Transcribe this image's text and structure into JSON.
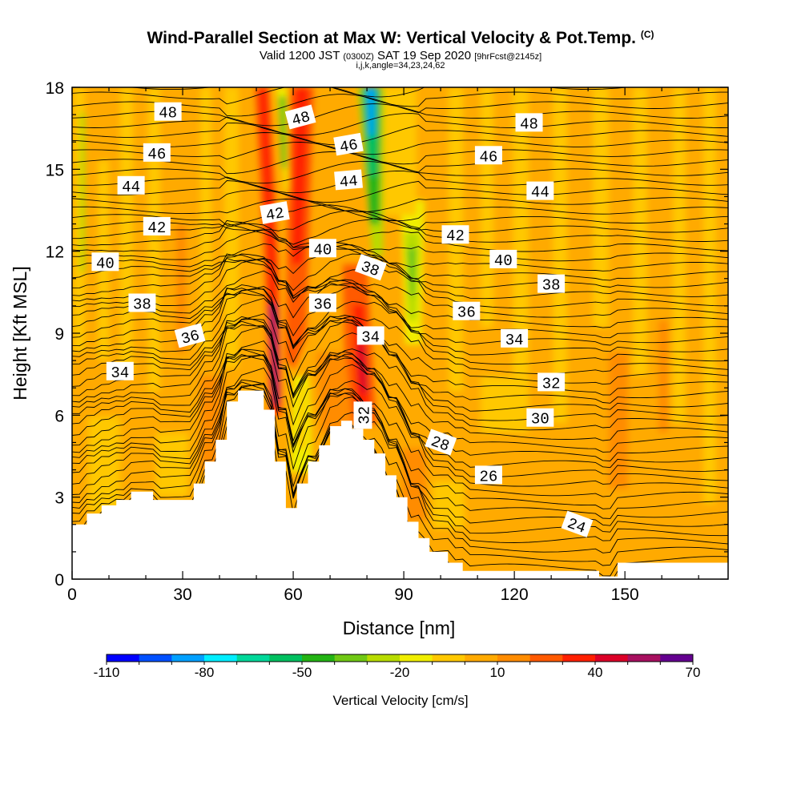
{
  "header": {
    "title": "Wind-Parallel Section at Max W: Vertical Velocity & Pot.Temp.",
    "copyright": "(C)",
    "valid_prefix": "Valid 1200 JST",
    "valid_utc": "(0300Z)",
    "valid_date": "SAT 19 Sep 2020",
    "forecast": "[9hrFcst@2145z]",
    "indices": "i,j,k,angle=34,23,24,62"
  },
  "chart_data": {
    "type": "heatmap",
    "xlabel": "Distance [nm]",
    "ylabel": "Height [Kft MSL]",
    "xlim": [
      0,
      178
    ],
    "ylim": [
      0,
      18
    ],
    "xticks": [
      0,
      30,
      60,
      90,
      120,
      150
    ],
    "yticks": [
      0,
      3,
      6,
      9,
      12,
      15,
      18
    ],
    "colorbar": {
      "label": "Vertical Velocity [cm/s]",
      "tick_labels": [
        "-110",
        "-80",
        "-50",
        "-20",
        "10",
        "40",
        "70"
      ],
      "tick_values": [
        -110,
        -80,
        -50,
        -20,
        10,
        40,
        70
      ],
      "colors": [
        "#0000ff",
        "#0050ff",
        "#00a0ff",
        "#00eeff",
        "#00d89a",
        "#00c060",
        "#24b414",
        "#70c814",
        "#b8dc00",
        "#f0ee00",
        "#ffc800",
        "#ffaa00",
        "#ff8c00",
        "#ff5a00",
        "#ff2000",
        "#dc0028",
        "#a81060",
        "#640090"
      ]
    },
    "terrain_nm_kft": [
      [
        0,
        2.0
      ],
      [
        4,
        2.0
      ],
      [
        4,
        2.4
      ],
      [
        8,
        2.4
      ],
      [
        8,
        2.7
      ],
      [
        12,
        2.7
      ],
      [
        12,
        2.9
      ],
      [
        16,
        2.9
      ],
      [
        16,
        3.2
      ],
      [
        22,
        3.2
      ],
      [
        22,
        2.9
      ],
      [
        33,
        2.9
      ],
      [
        33,
        3.5
      ],
      [
        36,
        3.5
      ],
      [
        36,
        4.3
      ],
      [
        39,
        4.3
      ],
      [
        39,
        5.1
      ],
      [
        42,
        5.1
      ],
      [
        42,
        6.5
      ],
      [
        45,
        6.5
      ],
      [
        45,
        6.9
      ],
      [
        52,
        6.9
      ],
      [
        52,
        6.2
      ],
      [
        55,
        6.2
      ],
      [
        55,
        4.3
      ],
      [
        58,
        4.3
      ],
      [
        58,
        2.6
      ],
      [
        61,
        2.6
      ],
      [
        61,
        3.5
      ],
      [
        64,
        3.5
      ],
      [
        64,
        4.3
      ],
      [
        67,
        4.3
      ],
      [
        67,
        4.9
      ],
      [
        70,
        4.9
      ],
      [
        70,
        5.6
      ],
      [
        73,
        5.6
      ],
      [
        73,
        5.8
      ],
      [
        76,
        5.8
      ],
      [
        76,
        5.5
      ],
      [
        79,
        5.5
      ],
      [
        79,
        5.1
      ],
      [
        82,
        5.1
      ],
      [
        82,
        4.6
      ],
      [
        85,
        4.6
      ],
      [
        85,
        3.8
      ],
      [
        88,
        3.8
      ],
      [
        88,
        3.0
      ],
      [
        91,
        3.0
      ],
      [
        91,
        2.1
      ],
      [
        94,
        2.1
      ],
      [
        94,
        1.5
      ],
      [
        97,
        1.5
      ],
      [
        97,
        1.0
      ],
      [
        102,
        1.0
      ],
      [
        102,
        0.6
      ],
      [
        106,
        0.6
      ],
      [
        106,
        0.3
      ],
      [
        143,
        0.3
      ],
      [
        143,
        0.1
      ],
      [
        148,
        0.1
      ],
      [
        148,
        0.6
      ],
      [
        178,
        0.6
      ],
      [
        178,
        0
      ]
    ],
    "theta_contour_labels": [
      {
        "text": "48",
        "x": 26,
        "y": 17.1,
        "rot": 0
      },
      {
        "text": "46",
        "x": 23,
        "y": 15.6,
        "rot": 0
      },
      {
        "text": "44",
        "x": 16,
        "y": 14.4,
        "rot": 0
      },
      {
        "text": "42",
        "x": 23,
        "y": 12.9,
        "rot": 0
      },
      {
        "text": "40",
        "x": 9,
        "y": 11.6,
        "rot": 0
      },
      {
        "text": "38",
        "x": 19,
        "y": 10.1,
        "rot": 0
      },
      {
        "text": "36",
        "x": 32,
        "y": 8.9,
        "rot": -15
      },
      {
        "text": "34",
        "x": 13,
        "y": 7.6,
        "rot": 0
      },
      {
        "text": "48",
        "x": 62,
        "y": 16.9,
        "rot": -15
      },
      {
        "text": "46",
        "x": 75,
        "y": 15.9,
        "rot": -10
      },
      {
        "text": "44",
        "x": 75,
        "y": 14.6,
        "rot": -5
      },
      {
        "text": "42",
        "x": 55,
        "y": 13.4,
        "rot": -10
      },
      {
        "text": "40",
        "x": 68,
        "y": 12.1,
        "rot": 0
      },
      {
        "text": "36",
        "x": 68,
        "y": 10.1,
        "rot": 0
      },
      {
        "text": "38",
        "x": 81,
        "y": 11.4,
        "rot": 20
      },
      {
        "text": "34",
        "x": 81,
        "y": 8.9,
        "rot": 0
      },
      {
        "text": "32",
        "x": 79,
        "y": 6.0,
        "rot": -90
      },
      {
        "text": "48",
        "x": 124,
        "y": 16.7,
        "rot": 0
      },
      {
        "text": "46",
        "x": 113,
        "y": 15.5,
        "rot": 0
      },
      {
        "text": "44",
        "x": 127,
        "y": 14.2,
        "rot": 0
      },
      {
        "text": "42",
        "x": 104,
        "y": 12.6,
        "rot": 0
      },
      {
        "text": "40",
        "x": 117,
        "y": 11.7,
        "rot": 0
      },
      {
        "text": "38",
        "x": 130,
        "y": 10.8,
        "rot": 0
      },
      {
        "text": "36",
        "x": 107,
        "y": 9.8,
        "rot": 0
      },
      {
        "text": "34",
        "x": 120,
        "y": 8.8,
        "rot": 0
      },
      {
        "text": "32",
        "x": 130,
        "y": 7.2,
        "rot": 0
      },
      {
        "text": "30",
        "x": 127,
        "y": 5.9,
        "rot": 0
      },
      {
        "text": "28",
        "x": 100,
        "y": 5.0,
        "rot": 20
      },
      {
        "text": "26",
        "x": 113,
        "y": 3.8,
        "rot": 0
      },
      {
        "text": "24",
        "x": 137,
        "y": 2.0,
        "rot": 20
      }
    ]
  }
}
